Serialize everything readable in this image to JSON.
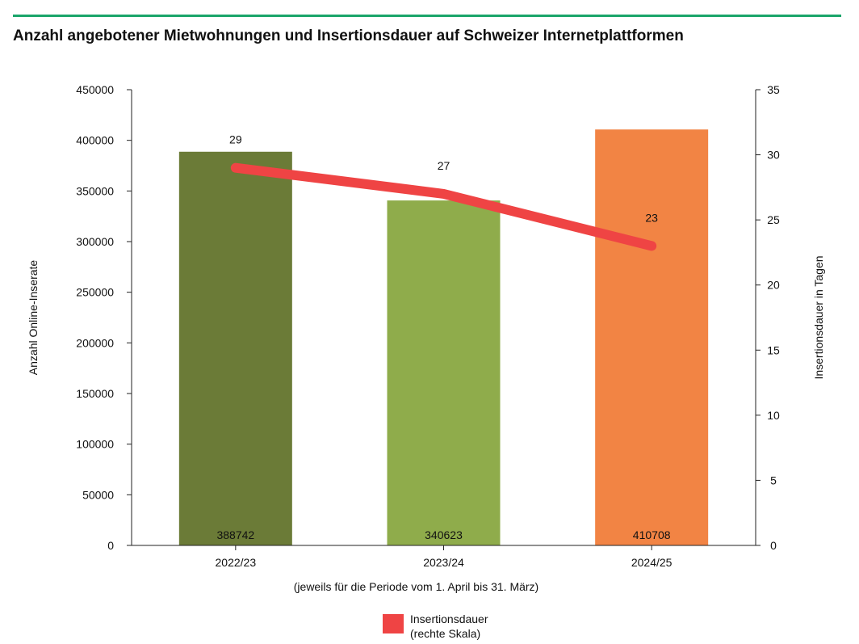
{
  "colors": {
    "accent_rule": "#1aa56a",
    "line": "#ef4444"
  },
  "chart_data": {
    "type": "bar",
    "title": "Anzahl angebotener Mietwohnungen und Insertionsdauer auf Schweizer Internetplattformen",
    "categories": [
      "2022/23",
      "2023/24",
      "2024/25"
    ],
    "xlabel": "(jeweils für die Periode vom 1. April bis 31. März)",
    "bars": {
      "values": [
        388742,
        340623,
        410708
      ],
      "colors": [
        "#6b7b37",
        "#8fac4b",
        "#f28444"
      ]
    },
    "line": {
      "name": "Insertionsdauer\n(rechte Skala)",
      "values": [
        29,
        27,
        23
      ],
      "color": "#ef4444"
    },
    "y_left": {
      "label": "Anzahl Online-Inserate",
      "range": [
        0,
        450000
      ],
      "ticks": [
        0,
        50000,
        100000,
        150000,
        200000,
        250000,
        300000,
        350000,
        400000,
        450000
      ]
    },
    "y_right": {
      "label": "Insertionsdauer in Tagen",
      "range": [
        0,
        35
      ],
      "ticks": [
        0,
        5,
        10,
        15,
        20,
        25,
        30,
        35
      ]
    },
    "legend": {
      "placement": "bottom-center",
      "entries": [
        {
          "label_lines": [
            "Insertionsdauer",
            "(rechte Skala)"
          ],
          "color": "#ef4444"
        }
      ]
    },
    "grid": false
  }
}
